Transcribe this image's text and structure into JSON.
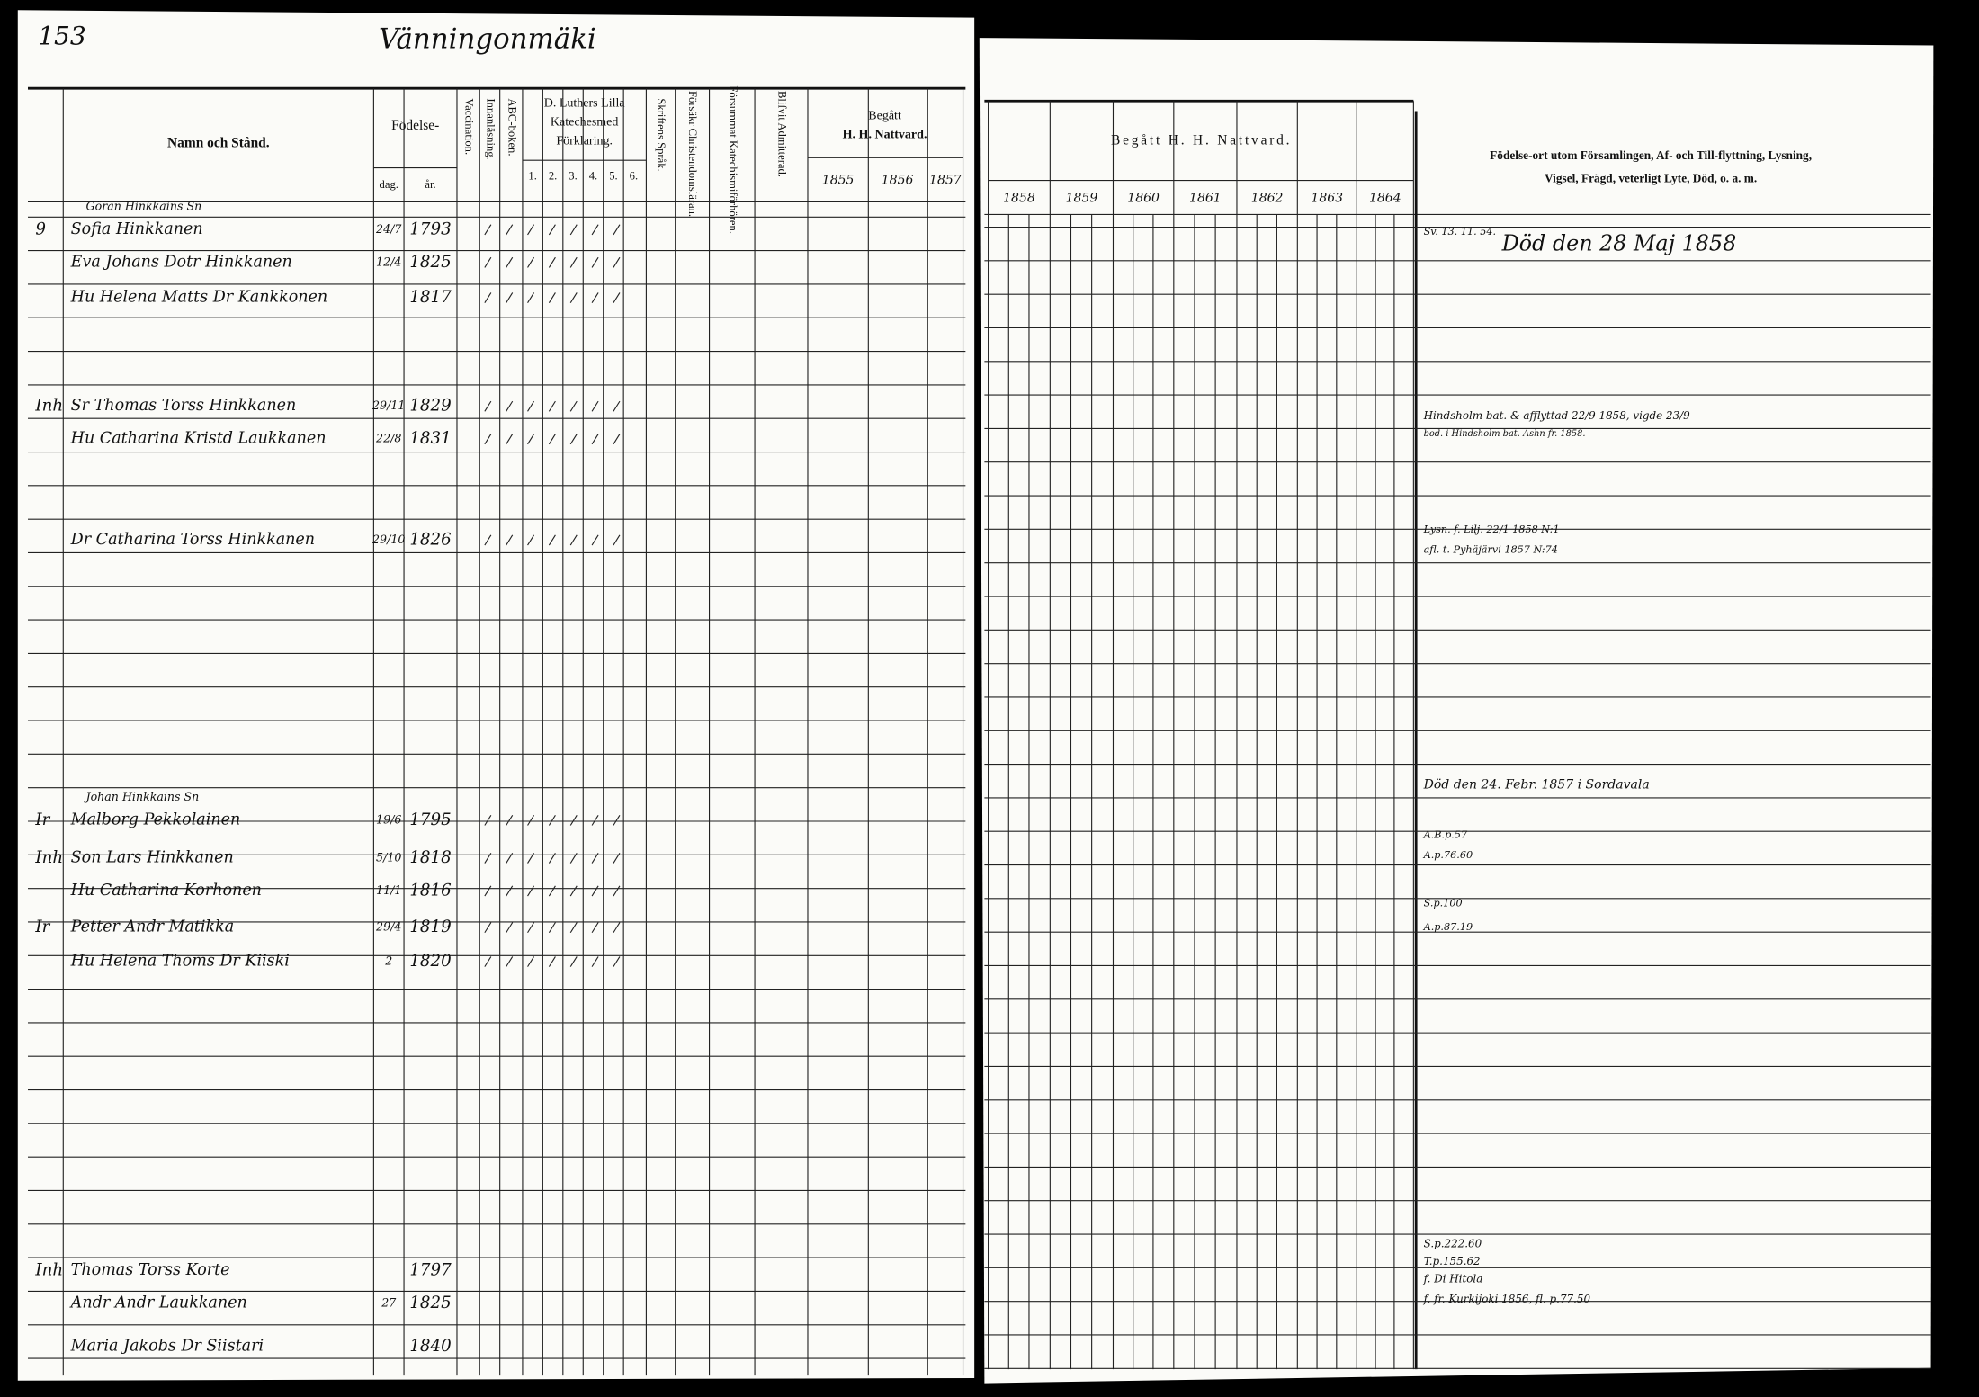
{
  "page_number": "153",
  "place": "Vänningonmäki",
  "left_headers": {
    "name": "Namn och Stånd.",
    "birth": "Födelse-",
    "birth_day": "dag.",
    "birth_year": "år.",
    "vaccination": "Vaccination.",
    "reading": "Innanläsning.",
    "abc": "ABC-boken.",
    "catechism": [
      "D. Luthers Lilla",
      "Katechesmed",
      "Förklaring."
    ],
    "catechism_parts": [
      "1.",
      "2.",
      "3.",
      "4.",
      "5.",
      "6."
    ],
    "scripture": "Skriftens Språk.",
    "christianity": "Försäkr Christendomsläran.",
    "missed": "Försummat Katechismiförhören.",
    "admitted": "Blifvit Admitterad.",
    "communion": [
      "Begått",
      "H. H. Nattvard."
    ],
    "communion_years": [
      "1855",
      "1856",
      "1857"
    ]
  },
  "right_headers": {
    "communion": "Begått H. H. Nattvard.",
    "communion_years": [
      "1858",
      "1859",
      "1860",
      "1861",
      "1862",
      "1863",
      "1864"
    ],
    "notes": [
      "Födelse-ort utom Församlingen, Af- och Till-flyttning, Lysning,",
      "Vigsel, Frägd, veterligt Lyte, Död, o. a. m."
    ]
  },
  "entries": [
    {
      "mark": "9",
      "above": "Göran Hinkkains Sn",
      "name": "Sofia Hinkkanen",
      "day": "24/7",
      "year": "1793"
    },
    {
      "name": "Eva Johans Dotr Hinkkanen",
      "day": "12/4",
      "year": "1825"
    },
    {
      "name": "Hu Helena Matts Dr Kankkonen",
      "year": "1817"
    },
    {
      "mark": "Inh",
      "name": "Sr Thomas Torss Hinkkanen",
      "day": "29/11",
      "year": "1829"
    },
    {
      "name": "Hu Catharina Kristd Laukkanen",
      "day": "22/8",
      "year": "1831"
    },
    {
      "name": "Dr Catharina Torss Hinkkanen",
      "day": "29/10",
      "year": "1826"
    },
    {
      "mark": "Ir",
      "above": "Johan Hinkkains Sn",
      "name": "Malborg Pekkolainen",
      "day": "19/6",
      "year": "1795"
    },
    {
      "mark": "Inh",
      "name": "Son Lars Hinkkanen",
      "day": "5/10",
      "year": "1818"
    },
    {
      "name": "Hu Catharina Korhonen",
      "day": "11/1",
      "year": "1816"
    },
    {
      "mark": "Ir",
      "name": "Petter Andr Matikka",
      "day": "29/4",
      "year": "1819"
    },
    {
      "name": "Hu Helena Thoms Dr Kiiski",
      "day": "2",
      "year": "1820"
    },
    {
      "mark": "Inh",
      "name": "Thomas Torss Korte",
      "year": "1797"
    },
    {
      "name": "Andr Andr Laukkanen",
      "day": "27",
      "year": "1825"
    },
    {
      "name": "Maria Jakobs Dr Siistari",
      "year": "1840"
    }
  ],
  "notes": [
    "Sv. 13. 11. 54.",
    "Död den 28 Maj 1858",
    "Hindsholm bat. & afflyttad 22/9 1858, vigde 23/9",
    "bod. i Hindsholm bat. Ashn fr. 1858.",
    "Lysn. f. Lilj. 22/1 1858 N:1",
    "afl. t. Pyhäjärvi 1857 N:74",
    "Död den 24. Febr. 1857 i Sordavala",
    "A.B.p.57",
    "A.p.76.60",
    "S.p.100",
    "A.p.87.19",
    "S.p.222.60",
    "T.p.155.62",
    "f. Di Hitola",
    "f. fr. Kurkijoki 1856, fl. p.77.50"
  ]
}
